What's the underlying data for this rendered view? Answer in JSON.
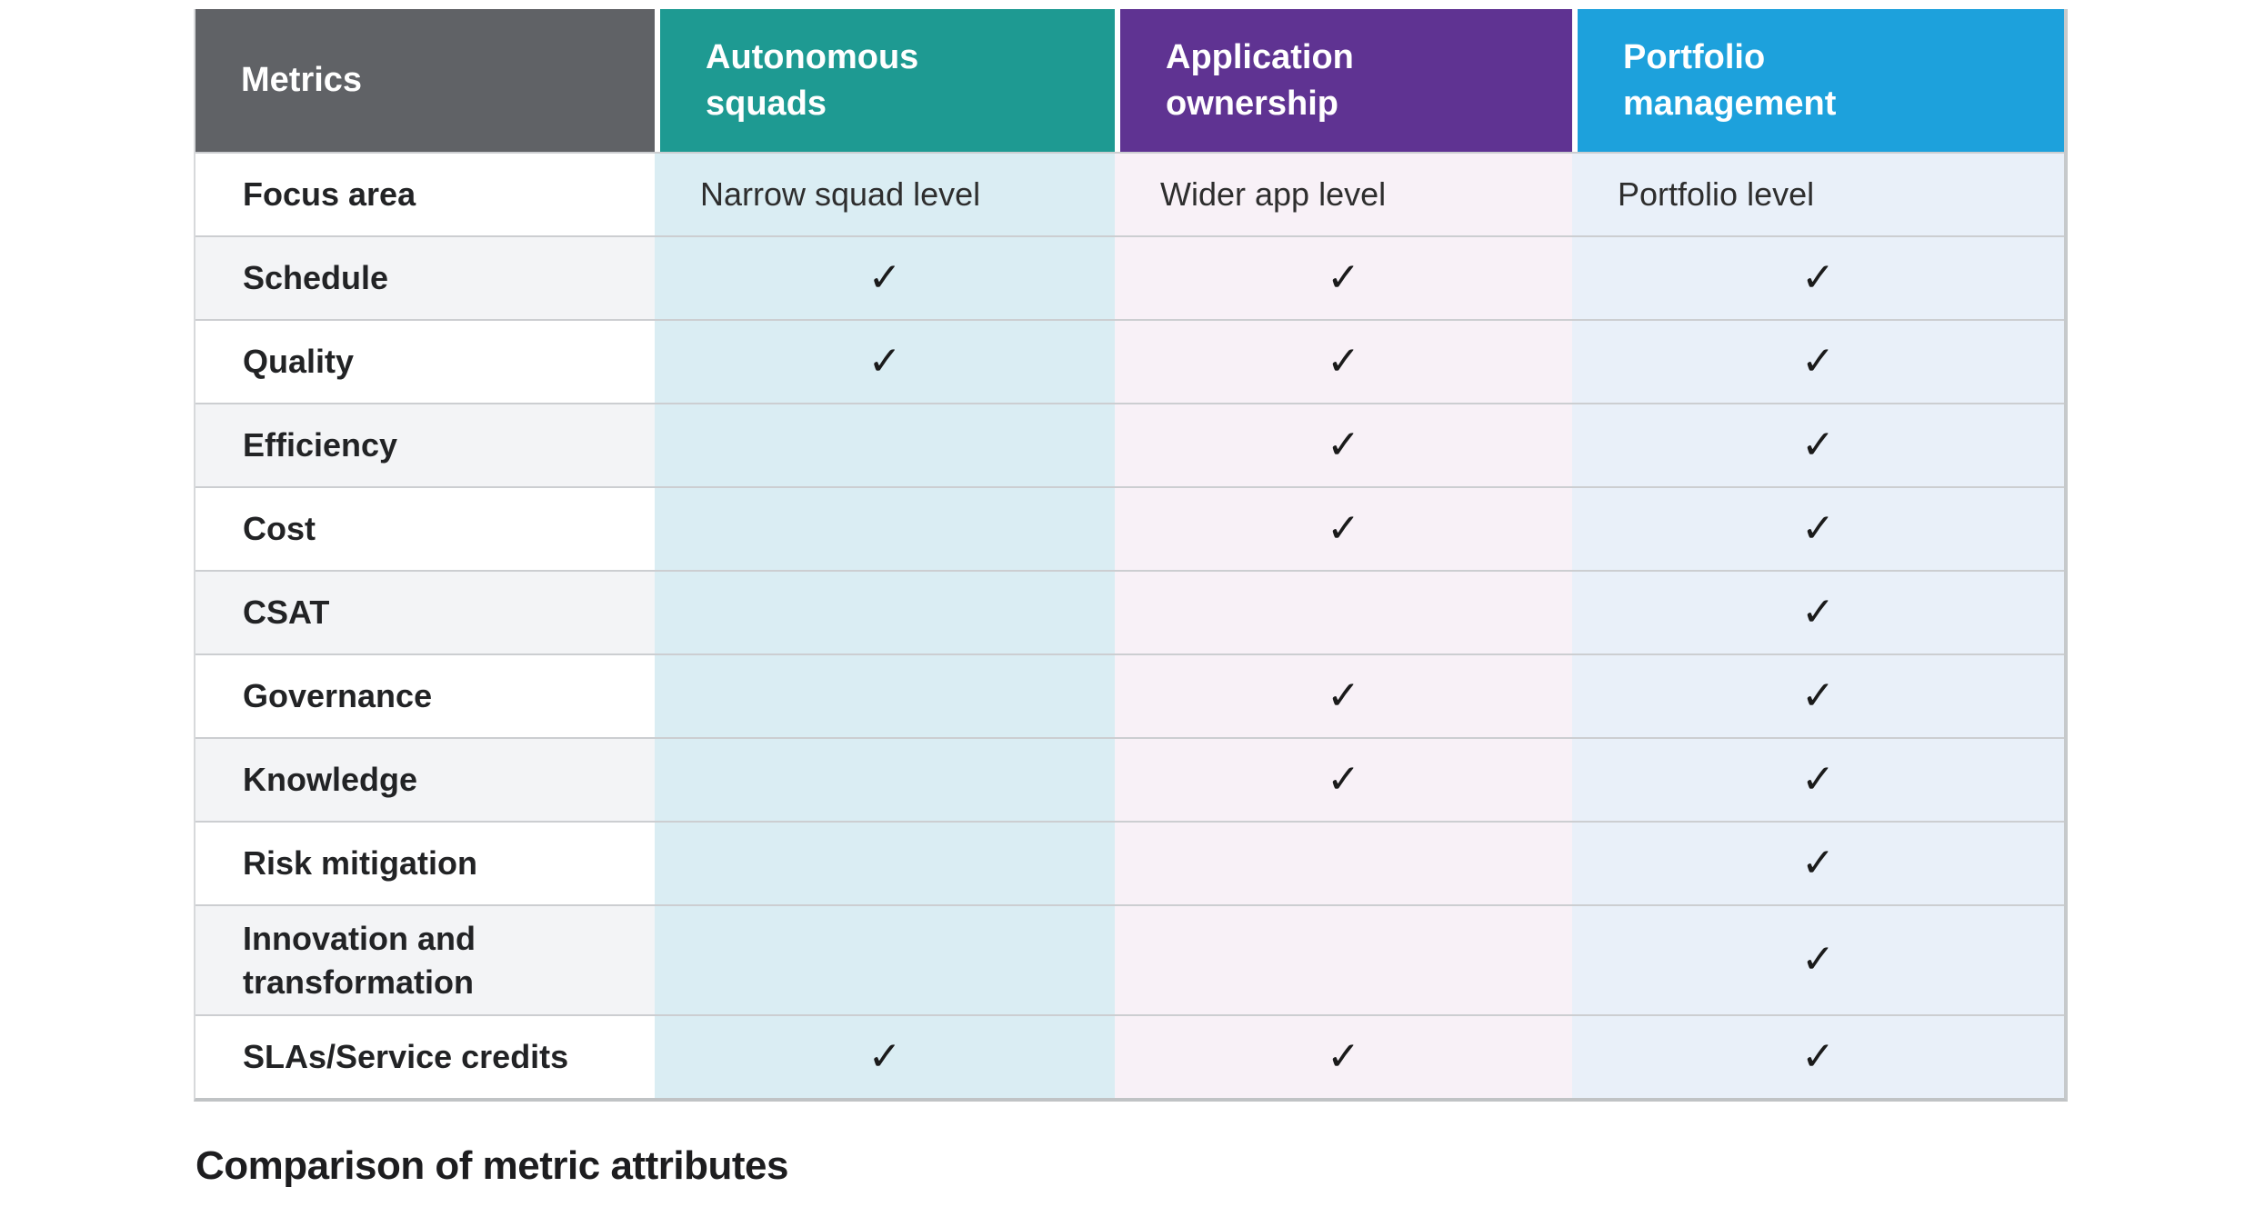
{
  "table": {
    "columns": [
      {
        "key": "metrics",
        "label": "Metrics",
        "header_bg": "#606266",
        "body_bg": "#ffffff"
      },
      {
        "key": "autonomous-squads",
        "label": "Autonomous squads",
        "header_bg": "#1e9a92",
        "body_bg": "#daedf3"
      },
      {
        "key": "application-ownership",
        "label": "Application ownership",
        "header_bg": "#5f3392",
        "body_bg": "#f8f1f7"
      },
      {
        "key": "portfolio-management",
        "label": "Portfolio management",
        "header_bg": "#1da1dc",
        "body_bg": "#e9f0f9"
      }
    ],
    "zebra_row_bg": "#f3f4f6",
    "check_glyph": "✓",
    "rows": [
      {
        "label": "Focus area",
        "cells": [
          "Narrow squad level",
          "Wider app level",
          "Portfolio level"
        ]
      },
      {
        "label": "Schedule",
        "cells": [
          "✓",
          "✓",
          "✓"
        ]
      },
      {
        "label": "Quality",
        "cells": [
          "✓",
          "✓",
          "✓"
        ]
      },
      {
        "label": "Efficiency",
        "cells": [
          "",
          "✓",
          "✓"
        ]
      },
      {
        "label": "Cost",
        "cells": [
          "",
          "✓",
          "✓"
        ]
      },
      {
        "label": "CSAT",
        "cells": [
          "",
          "",
          "✓"
        ]
      },
      {
        "label": "Governance",
        "cells": [
          "",
          "✓",
          "✓"
        ]
      },
      {
        "label": "Knowledge",
        "cells": [
          "",
          "✓",
          "✓"
        ]
      },
      {
        "label": "Risk mitigation",
        "cells": [
          "",
          "",
          "✓"
        ]
      },
      {
        "label": "Innovation and transformation",
        "cells": [
          "",
          "",
          "✓"
        ]
      },
      {
        "label": "SLAs/Service credits",
        "cells": [
          "✓",
          "✓",
          "✓"
        ]
      }
    ]
  },
  "caption": "Comparison of metric attributes"
}
